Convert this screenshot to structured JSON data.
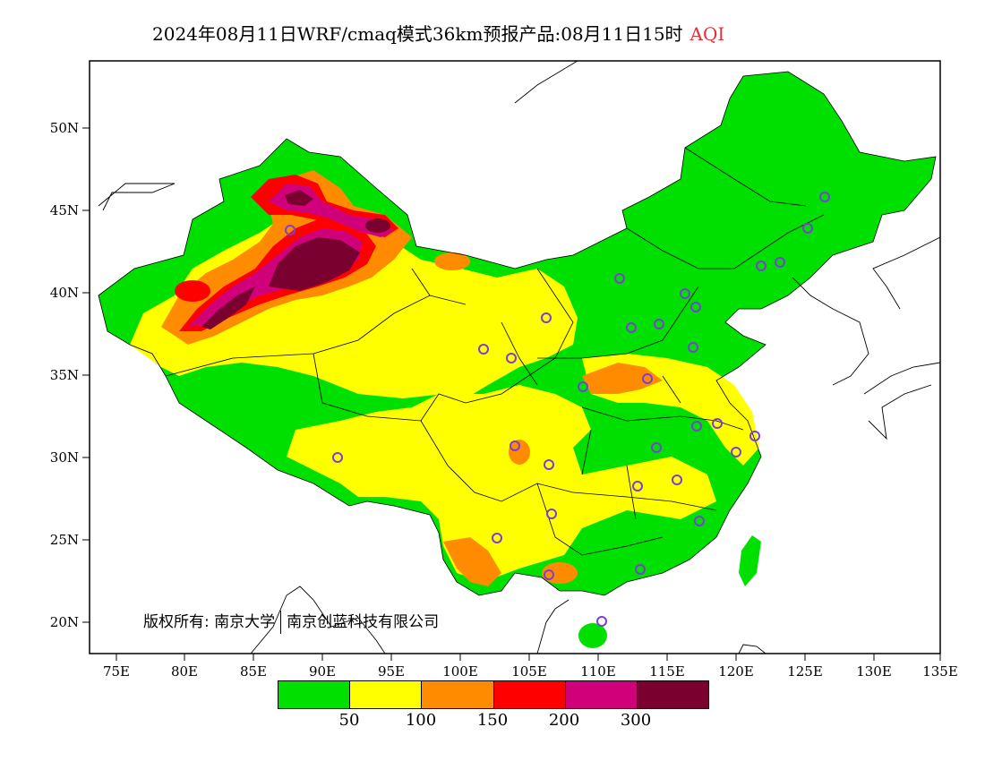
{
  "title": {
    "main": "2024年08月11日WRF/cmaq模式36km预报产品:08月11日15时",
    "variable": "AQI"
  },
  "axes": {
    "lon_ticks": [
      "75E",
      "80E",
      "85E",
      "90E",
      "95E",
      "100E",
      "105E",
      "110E",
      "115E",
      "120E",
      "125E",
      "130E",
      "135E"
    ],
    "lat_ticks": [
      "50N",
      "45N",
      "40N",
      "35N",
      "30N",
      "25N",
      "20N"
    ]
  },
  "copyright": {
    "left": "版权所有: 南京大学",
    "right": "南京创蓝科技有限公司"
  },
  "legend": {
    "colors": [
      "#00e000",
      "#ffff00",
      "#ff8c00",
      "#ff0000",
      "#d0007a",
      "#7a0030"
    ],
    "labels": [
      "50",
      "100",
      "150",
      "200",
      "300"
    ]
  },
  "colors": {
    "green": "#00e000",
    "yellow": "#ffff00",
    "orange": "#ff8c00",
    "red": "#ff0000",
    "magenta": "#d0007a",
    "maroon": "#7a0030",
    "station": "#7b3fd6"
  }
}
